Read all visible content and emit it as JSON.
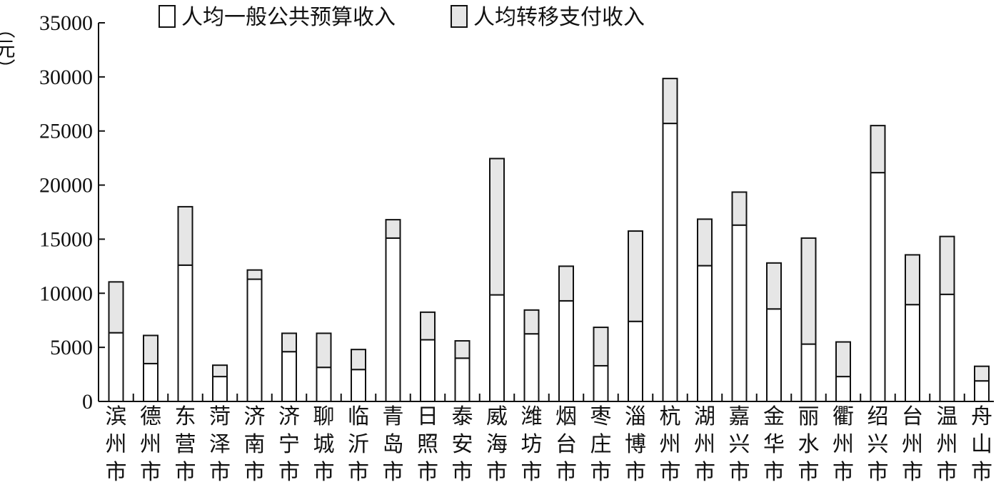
{
  "chart_data": {
    "type": "bar",
    "stacked": true,
    "ylabel": "（元）",
    "ylim": [
      0,
      35000
    ],
    "yticks": [
      0,
      5000,
      10000,
      15000,
      20000,
      25000,
      30000,
      35000
    ],
    "grid": false,
    "legend_position": "top-center",
    "categories": [
      "滨州市",
      "德州市",
      "东营市",
      "菏泽市",
      "济南市",
      "济宁市",
      "聊城市",
      "临沂市",
      "青岛市",
      "日照市",
      "泰安市",
      "威海市",
      "潍坊市",
      "烟台市",
      "枣庄市",
      "淄博市",
      "杭州市",
      "湖州市",
      "嘉兴市",
      "金华市",
      "丽水市",
      "衢州市",
      "绍兴市",
      "台州市",
      "温州市",
      "舟山市"
    ],
    "series": [
      {
        "name": "人均一般公共预算收入",
        "color": "#ffffff",
        "values": [
          6350,
          3500,
          12600,
          2300,
          11300,
          4600,
          3150,
          2950,
          15100,
          5700,
          4000,
          9850,
          6250,
          9300,
          3300,
          7400,
          25700,
          12550,
          16300,
          8550,
          5300,
          2300,
          21150,
          8950,
          9900,
          1900
        ]
      },
      {
        "name": "人均转移支付收入",
        "color": "#e6e6e6",
        "values": [
          4700,
          2600,
          5400,
          1050,
          850,
          1700,
          3150,
          1850,
          1700,
          2550,
          1600,
          12600,
          2200,
          3200,
          3550,
          8350,
          4150,
          4300,
          3050,
          4250,
          9800,
          3200,
          4350,
          4600,
          5350,
          1350
        ]
      }
    ]
  }
}
